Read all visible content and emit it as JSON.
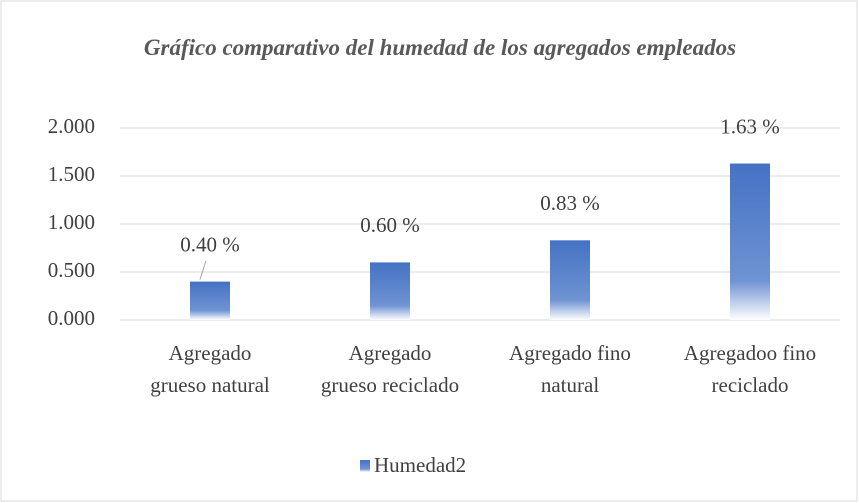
{
  "chart_data": {
    "type": "bar",
    "title": "Gráfico comparativo del humedad de los agregados empleados",
    "categories": [
      "Agregado grueso natural",
      "Agregado grueso reciclado",
      "Agregado fino natural",
      "Agregadoo fino reciclado"
    ],
    "series": [
      {
        "name": "Humedad2",
        "color": "#4472c4",
        "values": [
          0.4,
          0.6,
          0.83,
          1.63
        ],
        "value_labels": [
          "0.40 %",
          "0.60 %",
          "0.83 %",
          "1.63 %"
        ]
      }
    ],
    "ylim": [
      0,
      2
    ],
    "yticks": [
      {
        "value": 0,
        "label": "0.000"
      },
      {
        "value": 0.5,
        "label": "0.500"
      },
      {
        "value": 1,
        "label": "1.000"
      },
      {
        "value": 1.5,
        "label": "1.500"
      },
      {
        "value": 2,
        "label": "2.000"
      }
    ],
    "grid": true,
    "legend": "bottom"
  }
}
